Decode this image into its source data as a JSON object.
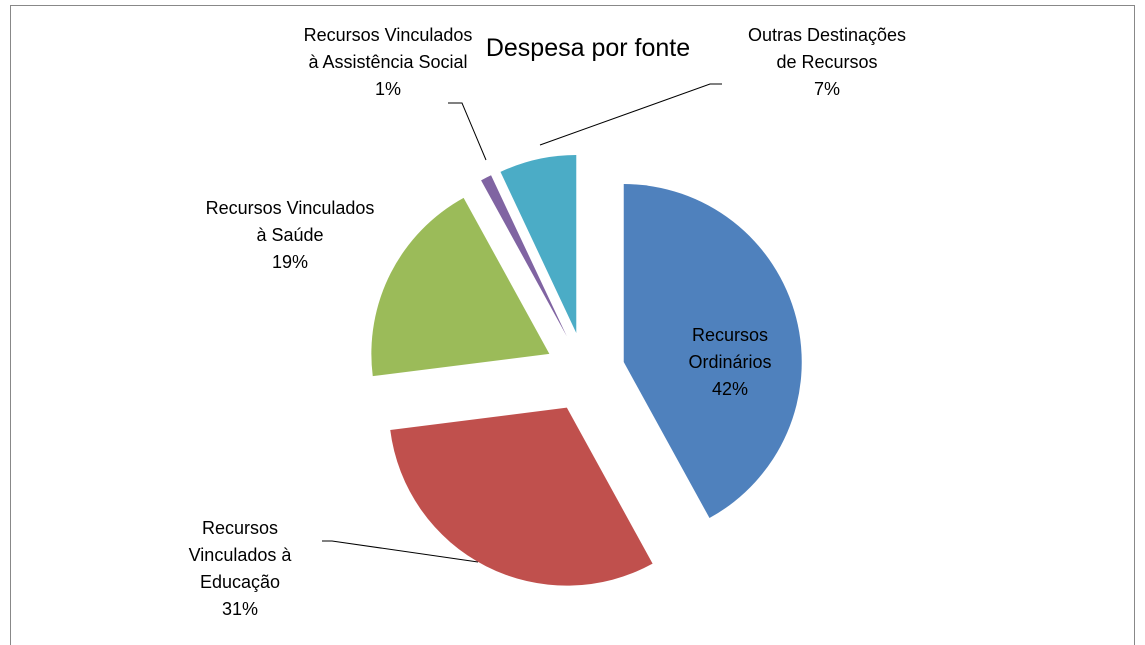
{
  "chart_data": {
    "type": "pie",
    "title": "Despesa por fonte",
    "categories": [
      "Recursos Ordinários",
      "Recursos Vinculados à Educação",
      "Recursos Vinculados à Saúde",
      "Recursos Vinculados à Assistência Social",
      "Outras Destinações de Recursos"
    ],
    "values": [
      42,
      31,
      19,
      1,
      7
    ],
    "value_labels": [
      "42%",
      "31%",
      "19%",
      "1%",
      "7%"
    ],
    "colors": [
      "#4f81bd",
      "#c0504d",
      "#9bbb59",
      "#8064a2",
      "#4bacc6"
    ]
  }
}
